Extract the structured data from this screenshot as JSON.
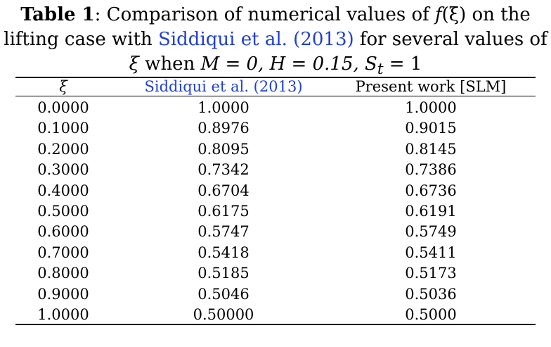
{
  "caption": {
    "label": "Table 1",
    "text_1": ": Comparison of numerical values of ",
    "func": "f",
    "func_arg": "(ξ)",
    "text_2": " on the",
    "text_3": "lifting case with ",
    "link": "Siddiqui et al. (2013)",
    "text_4": " for several values of",
    "line3_xi": "ξ",
    "line3_when": " when ",
    "line3_cond": "M = 0, H = 0.15, S",
    "line3_sub": "t",
    "line3_end": " = 1"
  },
  "table": {
    "headers": [
      "ξ",
      "Siddiqui et al. (2013)",
      "Present work [SLM]"
    ],
    "rows": [
      [
        "0.0000",
        "1.0000",
        "1.0000"
      ],
      [
        "0.1000",
        "0.8976",
        "0.9015"
      ],
      [
        "0.2000",
        "0.8095",
        "0.8145"
      ],
      [
        "0.3000",
        "0.7342",
        "0.7386"
      ],
      [
        "0.4000",
        "0.6704",
        "0.6736"
      ],
      [
        "0.5000",
        "0.6175",
        "0.6191"
      ],
      [
        "0.6000",
        "0.5747",
        "0.5749"
      ],
      [
        "0.7000",
        "0.5418",
        "0.5411"
      ],
      [
        "0.8000",
        "0.5185",
        "0.5173"
      ],
      [
        "0.9000",
        "0.5046",
        "0.5036"
      ],
      [
        "1.0000",
        "0.50000",
        "0.5000"
      ]
    ]
  },
  "colors": {
    "link": "#1f3fd6",
    "text": "#000000",
    "background": "#ffffff"
  }
}
